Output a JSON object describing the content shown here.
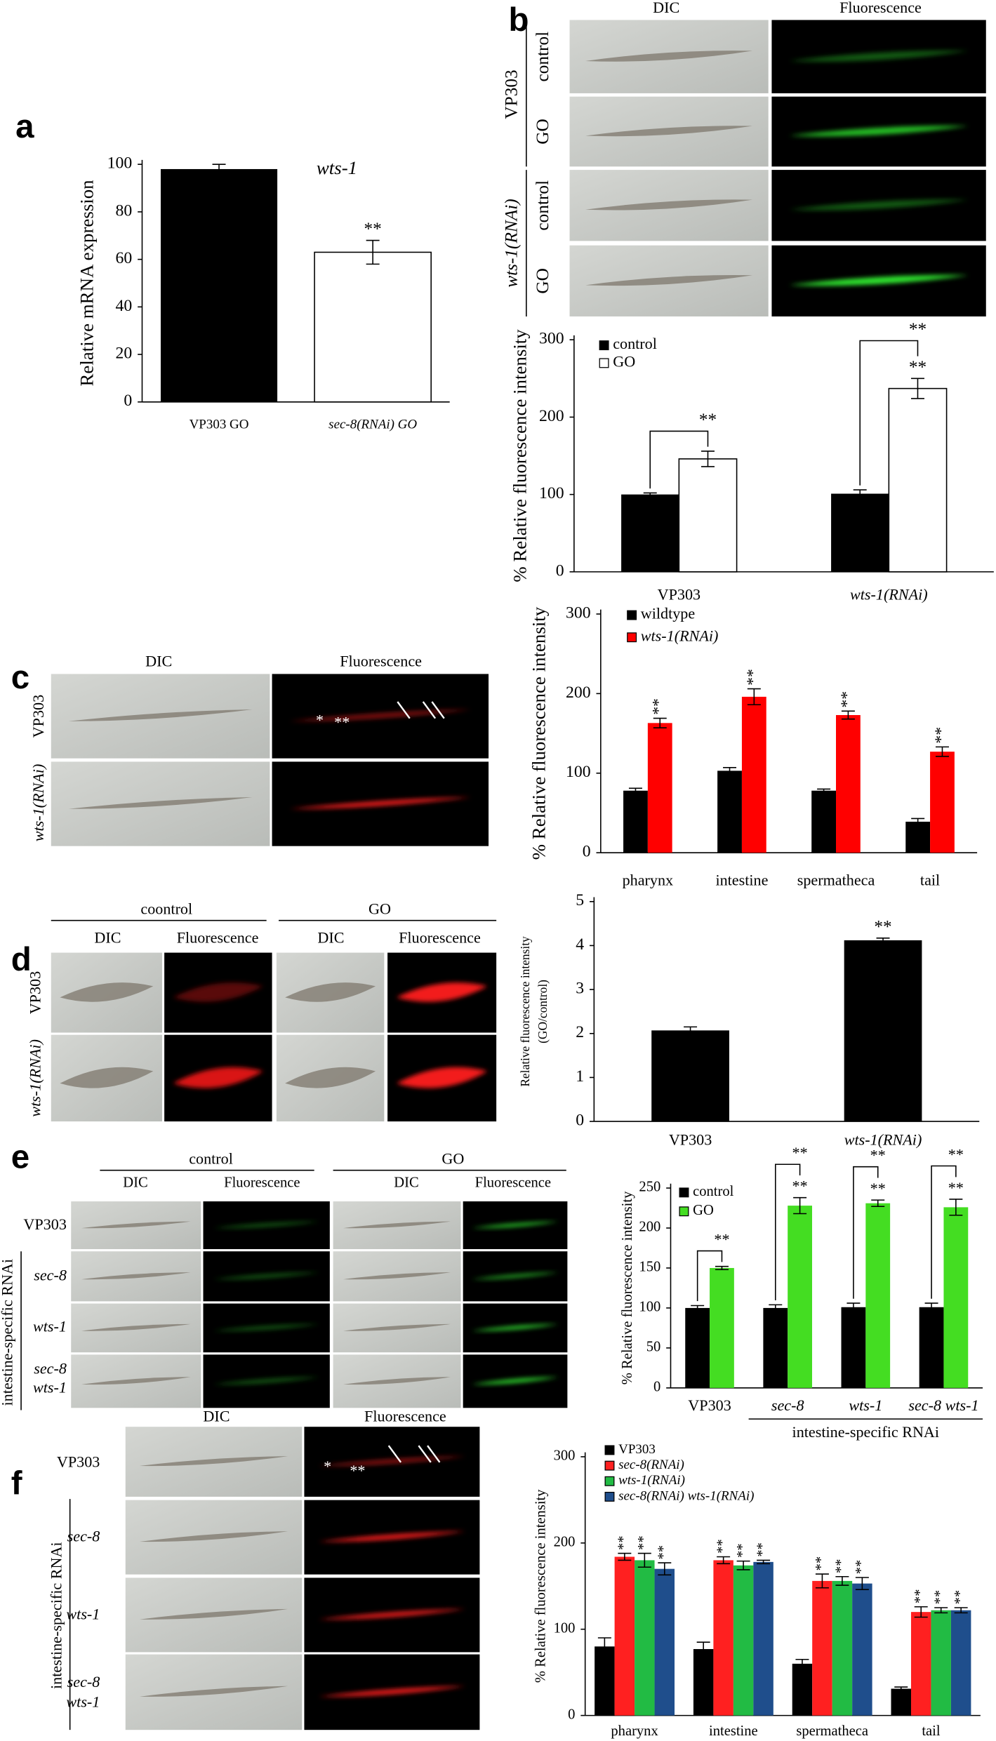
{
  "panel_labels": [
    "a",
    "b",
    "c",
    "d",
    "e",
    "f"
  ],
  "micrographs": {
    "b": {
      "columns": [
        "DIC",
        "Fluorescence"
      ],
      "groups": [
        "VP303",
        "wts-1(RNAi)"
      ],
      "rows": [
        "control",
        "GO",
        "control",
        "GO"
      ]
    },
    "c": {
      "columns": [
        "DIC",
        "Fluorescence"
      ],
      "rows": [
        "VP303",
        "wts-1(RNAi)"
      ],
      "annotations": [
        "*",
        "**"
      ]
    },
    "d": {
      "groups": [
        "coontrol",
        "GO"
      ],
      "columns": [
        "DIC",
        "Fluorescence",
        "DIC",
        "Fluorescence"
      ],
      "rows": [
        "VP303",
        "wts-1(RNAi)"
      ]
    },
    "e": {
      "groups": [
        "control",
        "GO"
      ],
      "columns": [
        "DIC",
        "Fluorescence",
        "DIC",
        "Fluorescence"
      ],
      "rows": [
        "VP303",
        "sec-8",
        "wts-1",
        [
          "sec-8",
          "wts-1"
        ]
      ],
      "side_label": "intestine-specific RNAi"
    },
    "f": {
      "columns": [
        "DIC",
        "Fluorescence"
      ],
      "rows": [
        "VP303",
        "sec-8",
        "wts-1",
        [
          "sec-8",
          "wts-1"
        ]
      ],
      "side_label": "intestine-specific RNAi",
      "annotations": [
        "*",
        "**"
      ]
    }
  },
  "chart_data": [
    {
      "type": "bar",
      "ylabel": "Relative mRNA expression",
      "annotation": "wts-1",
      "categories": [
        "VP303 GO",
        "sec-8(RNAi) GO"
      ],
      "values": [
        98,
        63
      ],
      "errors": [
        2,
        5
      ],
      "colors": [
        "#000000",
        "#ffffff"
      ],
      "significance": [
        null,
        "**"
      ],
      "ylim": [
        0,
        100
      ],
      "yticks": [
        0,
        20,
        40,
        60,
        80,
        100
      ]
    },
    {
      "type": "bar",
      "ylabel": "% Relative fluorescence intensity",
      "categories": [
        "VP303",
        "wts-1(RNAi)"
      ],
      "series": [
        {
          "name": "control",
          "color": "#000000",
          "values": [
            100,
            101
          ],
          "errors": [
            2,
            5
          ]
        },
        {
          "name": "GO",
          "color": "#ffffff",
          "values": [
            146,
            237
          ],
          "errors": [
            10,
            13
          ],
          "significance": [
            null,
            "**"
          ]
        }
      ],
      "brackets": [
        "**",
        "**"
      ],
      "legend": "upper left",
      "ylim": [
        0,
        300
      ],
      "yticks": [
        0,
        100,
        200,
        300
      ]
    },
    {
      "type": "bar",
      "ylabel": "% Relative fluorescence intensity",
      "categories": [
        "pharynx",
        "intestine",
        "spermatheca",
        "tail"
      ],
      "series": [
        {
          "name": "wildtype",
          "color": "#000000",
          "values": [
            78,
            103,
            78,
            39
          ],
          "errors": [
            3,
            4,
            2,
            4
          ]
        },
        {
          "name": "wts-1(RNAi)",
          "color": "#ff0000",
          "values": [
            163,
            196,
            173,
            127
          ],
          "errors": [
            6,
            10,
            5,
            6
          ],
          "significance": [
            "**",
            "**",
            "**",
            "**"
          ]
        }
      ],
      "legend": "upper left",
      "ylim": [
        0,
        300
      ],
      "yticks": [
        0,
        100,
        200,
        300
      ]
    },
    {
      "type": "bar",
      "ylabel": [
        "Relative fluorescence intensity",
        "(GO/control)"
      ],
      "categories": [
        "VP303",
        "wts-1(RNAi)"
      ],
      "values": [
        2.07,
        4.12
      ],
      "errors": [
        0.08,
        0.05
      ],
      "color": "#000000",
      "significance": [
        null,
        "**"
      ],
      "ylim": [
        0,
        5
      ],
      "yticks": [
        0,
        1,
        2,
        3,
        4,
        5
      ]
    },
    {
      "type": "bar",
      "ylabel": "% Relative fluorescence intensity",
      "categories": [
        "VP303",
        "sec-8",
        "wts-1",
        "sec-8 wts-1"
      ],
      "x_group_label": "intestine-specific RNAi",
      "series": [
        {
          "name": "control",
          "color": "#000000",
          "values": [
            100,
            100,
            101,
            101
          ],
          "errors": [
            3,
            4,
            5,
            5
          ]
        },
        {
          "name": "GO",
          "color": "#44dd22",
          "values": [
            150,
            228,
            231,
            226
          ],
          "errors": [
            2,
            10,
            4,
            10
          ],
          "significance": [
            null,
            "**",
            "**",
            "**"
          ]
        }
      ],
      "brackets": [
        "**",
        "**",
        "**",
        "**"
      ],
      "legend": "upper left",
      "ylim": [
        0,
        250
      ],
      "yticks": [
        0,
        50,
        100,
        150,
        200,
        250
      ]
    },
    {
      "type": "bar",
      "ylabel": "% Relative fluorescence intensity",
      "categories": [
        "pharynx",
        "intestine",
        "spermatheca",
        "tail"
      ],
      "series": [
        {
          "name": "VP303",
          "color": "#000000",
          "values": [
            80,
            77,
            60,
            31
          ],
          "errors": [
            10,
            8,
            5,
            2
          ]
        },
        {
          "name": "sec-8(RNAi)",
          "color": "#ff2020",
          "values": [
            184,
            180,
            156,
            120
          ],
          "errors": [
            4,
            4,
            8,
            6
          ],
          "significance": [
            "**",
            "**",
            "**",
            "**"
          ]
        },
        {
          "name": "wts-1(RNAi)",
          "color": "#22bb44",
          "values": [
            180,
            174,
            156,
            122
          ],
          "errors": [
            8,
            5,
            5,
            3
          ],
          "significance": [
            "**",
            "**",
            "**",
            "**"
          ]
        },
        {
          "name": "sec-8(RNAi) wts-1(RNAi)",
          "color": "#1f4e8c",
          "values": [
            170,
            178,
            153,
            122
          ],
          "errors": [
            7,
            2,
            7,
            3
          ],
          "significance": [
            "**",
            "**",
            "**",
            "**"
          ]
        }
      ],
      "legend": "upper left",
      "ylim": [
        0,
        300
      ],
      "yticks": [
        0,
        100,
        200,
        300
      ]
    }
  ]
}
